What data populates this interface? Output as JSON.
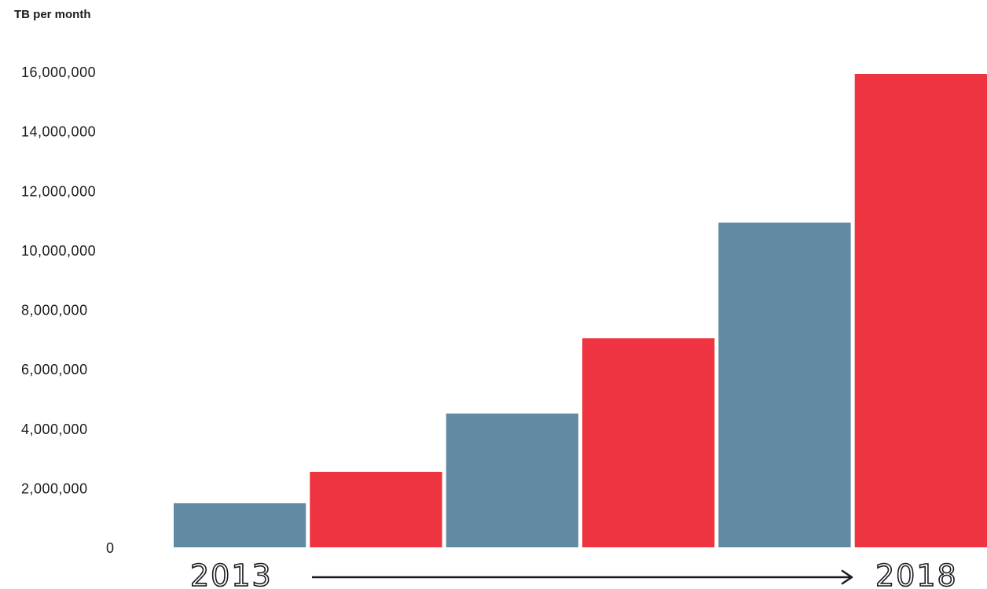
{
  "chart_data": {
    "type": "bar",
    "unit_label": "TB per month",
    "categories": [
      "",
      "",
      "",
      "",
      "",
      ""
    ],
    "values": [
      1480000,
      2540000,
      4500000,
      7030000,
      10920000,
      15920000
    ],
    "bar_colors": [
      "#628aa3",
      "#ee3440",
      "#628aa3",
      "#ee3440",
      "#628aa3",
      "#ee3440"
    ],
    "yticks": [
      "0",
      "2,000,000",
      "4,000,000",
      "6,000,000",
      "8,000,000",
      "10,000,000",
      "12,000,000",
      "14,000,000",
      "16,000,000"
    ],
    "ylim": [
      0,
      16000000
    ],
    "grid": false,
    "legend": "none",
    "timeline": {
      "start": "2013",
      "end": "2018"
    }
  }
}
